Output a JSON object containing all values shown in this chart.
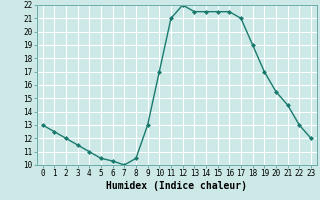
{
  "x": [
    0,
    1,
    2,
    3,
    4,
    5,
    6,
    7,
    8,
    9,
    10,
    11,
    12,
    13,
    14,
    15,
    16,
    17,
    18,
    19,
    20,
    21,
    22,
    23
  ],
  "y": [
    13.0,
    12.5,
    12.0,
    11.5,
    11.0,
    10.5,
    10.3,
    10.0,
    10.5,
    13.0,
    17.0,
    21.0,
    22.0,
    21.5,
    21.5,
    21.5,
    21.5,
    21.0,
    19.0,
    17.0,
    15.5,
    14.5,
    13.0,
    12.0
  ],
  "line_color": "#1a7a6e",
  "marker": "D",
  "markersize": 2.0,
  "linewidth": 1.0,
  "xlabel": "Humidex (Indice chaleur)",
  "xlim": [
    -0.5,
    23.5
  ],
  "ylim": [
    10,
    22
  ],
  "yticks": [
    10,
    11,
    12,
    13,
    14,
    15,
    16,
    17,
    18,
    19,
    20,
    21,
    22
  ],
  "xticks": [
    0,
    1,
    2,
    3,
    4,
    5,
    6,
    7,
    8,
    9,
    10,
    11,
    12,
    13,
    14,
    15,
    16,
    17,
    18,
    19,
    20,
    21,
    22,
    23
  ],
  "xtick_labels": [
    "0",
    "1",
    "2",
    "3",
    "4",
    "5",
    "6",
    "7",
    "8",
    "9",
    "10",
    "11",
    "12",
    "13",
    "14",
    "15",
    "16",
    "17",
    "18",
    "19",
    "20",
    "21",
    "22",
    "23"
  ],
  "bg_color": "#cce9e7",
  "grid_color": "#ffffff",
  "tick_fontsize": 5.5,
  "xlabel_fontsize": 7.0,
  "spine_color": "#6aacaa"
}
